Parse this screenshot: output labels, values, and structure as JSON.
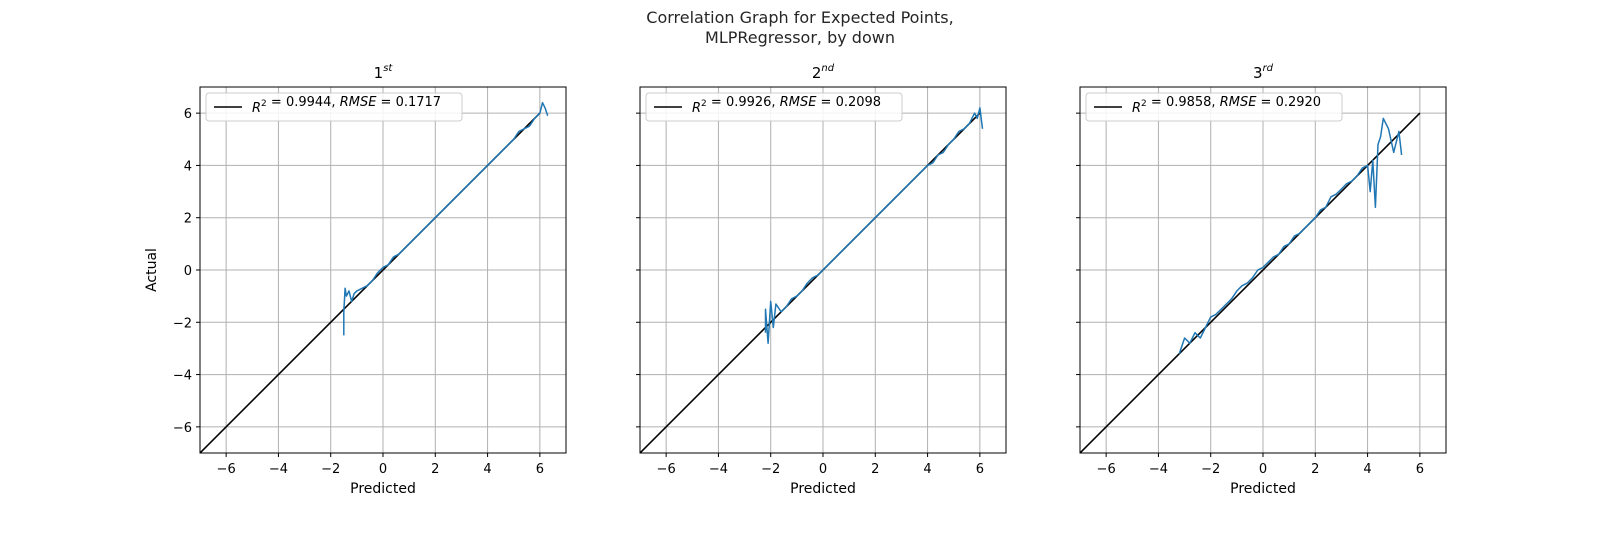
{
  "figure": {
    "title_line1": "Correlation Graph for Expected Points,",
    "title_line2": "MLPRegressor, by down"
  },
  "colors": {
    "reference_line": "#000000",
    "data_line": "#1f77b4",
    "grid": "#b0b0b0",
    "legend_border": "#cccccc"
  },
  "chart_data": [
    {
      "type": "line",
      "title_base": "1",
      "title_sup": "st",
      "xlabel": "Predicted",
      "ylabel": "Actual",
      "xlim": [
        -7,
        7
      ],
      "ylim": [
        -7,
        7
      ],
      "xticks": [
        -6,
        -4,
        -2,
        0,
        2,
        4,
        6
      ],
      "yticks": [
        -6,
        -4,
        -2,
        0,
        2,
        4,
        6
      ],
      "ytick_labels_shown": true,
      "grid": true,
      "legend": {
        "placement": "top-left",
        "entry": "R² = 0.9944, RMSE = 0.1717",
        "r2": "0.9944",
        "rmse": "0.1717"
      },
      "series": [
        {
          "name": "R² = 0.9944, RMSE = 0.1717",
          "role": "reference",
          "x": [
            -7,
            6
          ],
          "y": [
            -7,
            6
          ]
        },
        {
          "role": "data",
          "x": [
            -1.5,
            -1.5,
            -1.45,
            -1.4,
            -1.3,
            -1.2,
            -1.1,
            -1.0,
            -0.8,
            -0.6,
            -0.4,
            -0.2,
            0.0,
            0.2,
            0.4,
            0.6,
            0.8,
            1.0,
            1.2,
            1.4,
            1.6,
            1.8,
            2.0,
            2.2,
            2.4,
            2.6,
            2.8,
            3.0,
            3.2,
            3.4,
            3.6,
            3.8,
            4.0,
            4.2,
            4.4,
            4.6,
            4.8,
            5.0,
            5.2,
            5.4,
            5.6,
            5.8,
            6.0,
            6.1,
            6.2,
            6.3
          ],
          "y": [
            -2.5,
            -1.6,
            -0.7,
            -1.0,
            -0.8,
            -1.2,
            -0.9,
            -0.8,
            -0.7,
            -0.6,
            -0.4,
            -0.1,
            0.1,
            0.2,
            0.5,
            0.6,
            0.8,
            1.0,
            1.2,
            1.4,
            1.6,
            1.8,
            2.0,
            2.2,
            2.4,
            2.6,
            2.8,
            3.0,
            3.2,
            3.4,
            3.6,
            3.8,
            4.0,
            4.2,
            4.4,
            4.6,
            4.8,
            5.0,
            5.3,
            5.4,
            5.5,
            5.8,
            6.0,
            6.4,
            6.2,
            5.9
          ]
        }
      ]
    },
    {
      "type": "line",
      "title_base": "2",
      "title_sup": "nd",
      "xlabel": "Predicted",
      "ylabel": "",
      "xlim": [
        -7,
        7
      ],
      "ylim": [
        -7,
        7
      ],
      "xticks": [
        -6,
        -4,
        -2,
        0,
        2,
        4,
        6
      ],
      "yticks": [
        -6,
        -4,
        -2,
        0,
        2,
        4,
        6
      ],
      "ytick_labels_shown": false,
      "grid": true,
      "legend": {
        "placement": "top-left",
        "entry": "R² = 0.9926, RMSE = 0.2098",
        "r2": "0.9926",
        "rmse": "0.2098"
      },
      "series": [
        {
          "name": "R² = 0.9926, RMSE = 0.2098",
          "role": "reference",
          "x": [
            -7,
            6
          ],
          "y": [
            -7,
            6
          ]
        },
        {
          "role": "data",
          "x": [
            -2.2,
            -2.2,
            -2.1,
            -2.0,
            -1.9,
            -1.8,
            -1.6,
            -1.4,
            -1.2,
            -1.0,
            -0.8,
            -0.6,
            -0.4,
            -0.2,
            0.0,
            0.2,
            0.4,
            0.6,
            0.8,
            1.0,
            1.2,
            1.4,
            1.6,
            1.8,
            2.0,
            2.2,
            2.4,
            2.6,
            2.8,
            3.0,
            3.2,
            3.4,
            3.6,
            3.8,
            4.0,
            4.2,
            4.4,
            4.6,
            4.8,
            5.0,
            5.2,
            5.4,
            5.6,
            5.8,
            5.9,
            6.0,
            6.1
          ],
          "y": [
            -2.4,
            -1.5,
            -2.8,
            -1.2,
            -2.2,
            -1.3,
            -1.6,
            -1.4,
            -1.1,
            -1.0,
            -0.8,
            -0.5,
            -0.3,
            -0.2,
            0.0,
            0.2,
            0.4,
            0.6,
            0.8,
            1.0,
            1.2,
            1.4,
            1.6,
            1.8,
            2.0,
            2.2,
            2.4,
            2.6,
            2.8,
            3.0,
            3.2,
            3.4,
            3.6,
            3.8,
            4.0,
            4.1,
            4.4,
            4.5,
            4.8,
            5.0,
            5.3,
            5.4,
            5.6,
            6.0,
            5.8,
            6.2,
            5.4
          ]
        }
      ]
    },
    {
      "type": "line",
      "title_base": "3",
      "title_sup": "rd",
      "xlabel": "Predicted",
      "ylabel": "",
      "xlim": [
        -7,
        7
      ],
      "ylim": [
        -7,
        7
      ],
      "xticks": [
        -6,
        -4,
        -2,
        0,
        2,
        4,
        6
      ],
      "yticks": [
        -6,
        -4,
        -2,
        0,
        2,
        4,
        6
      ],
      "ytick_labels_shown": false,
      "grid": true,
      "legend": {
        "placement": "top-left",
        "entry": "R² = 0.9858, RMSE = 0.2920",
        "r2": "0.9858",
        "rmse": "0.2920"
      },
      "series": [
        {
          "name": "R² = 0.9858, RMSE = 0.2920",
          "role": "reference",
          "x": [
            -7,
            6
          ],
          "y": [
            -7,
            6
          ]
        },
        {
          "role": "data",
          "x": [
            -3.2,
            -3.0,
            -2.8,
            -2.6,
            -2.4,
            -2.2,
            -2.0,
            -1.8,
            -1.6,
            -1.4,
            -1.2,
            -1.0,
            -0.8,
            -0.6,
            -0.4,
            -0.2,
            0.0,
            0.2,
            0.4,
            0.6,
            0.8,
            1.0,
            1.2,
            1.4,
            1.6,
            1.8,
            2.0,
            2.2,
            2.4,
            2.6,
            2.8,
            3.0,
            3.2,
            3.4,
            3.6,
            3.8,
            4.0,
            4.1,
            4.2,
            4.3,
            4.4,
            4.5,
            4.6,
            4.8,
            5.0,
            5.2,
            5.3
          ],
          "y": [
            -3.2,
            -2.6,
            -2.8,
            -2.4,
            -2.6,
            -2.2,
            -1.8,
            -1.7,
            -1.5,
            -1.3,
            -1.1,
            -0.8,
            -0.6,
            -0.5,
            -0.3,
            0.0,
            0.1,
            0.3,
            0.5,
            0.6,
            0.9,
            1.0,
            1.3,
            1.4,
            1.6,
            1.8,
            2.0,
            2.3,
            2.4,
            2.8,
            2.9,
            3.1,
            3.3,
            3.4,
            3.6,
            3.9,
            4.0,
            3.0,
            4.2,
            2.4,
            4.8,
            5.1,
            5.8,
            5.4,
            4.5,
            5.3,
            4.4
          ]
        }
      ]
    }
  ]
}
